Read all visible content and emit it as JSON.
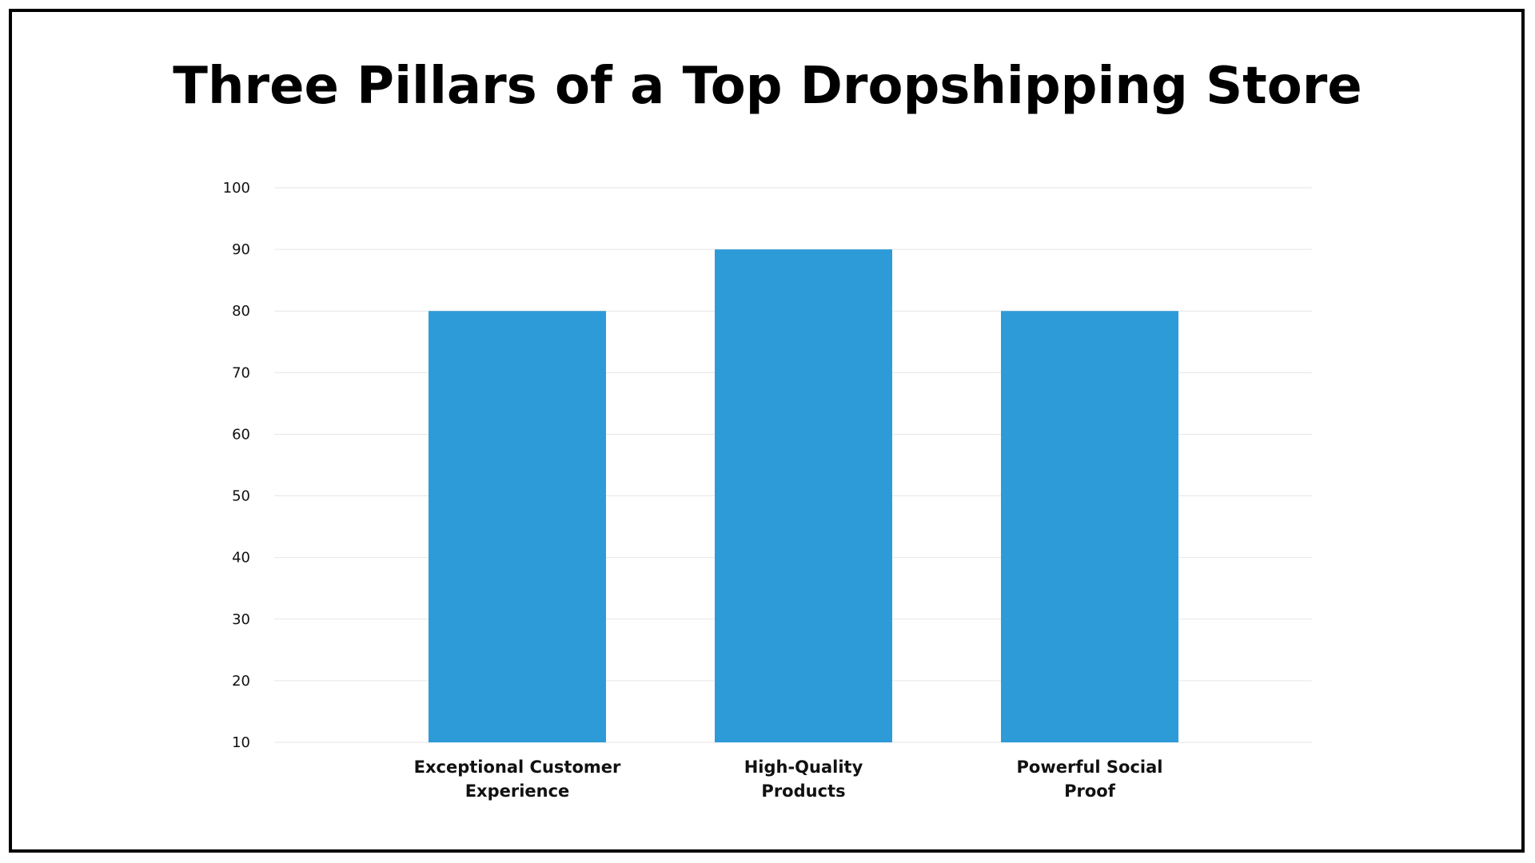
{
  "chart_data": {
    "type": "bar",
    "title": "Three Pillars of a Top Dropshipping Store",
    "xlabel": "",
    "ylabel": "",
    "categories": [
      [
        "Exceptional Customer",
        "Experience"
      ],
      [
        "High-Quality",
        "Products"
      ],
      [
        "Powerful Social",
        "Proof"
      ]
    ],
    "values": [
      80,
      90,
      80
    ],
    "ylim": [
      10,
      100
    ],
    "yticks": [
      10,
      20,
      30,
      40,
      50,
      60,
      70,
      80,
      90,
      100
    ],
    "grid": true,
    "legend": "none",
    "bar_color": "#2E9BD9"
  }
}
